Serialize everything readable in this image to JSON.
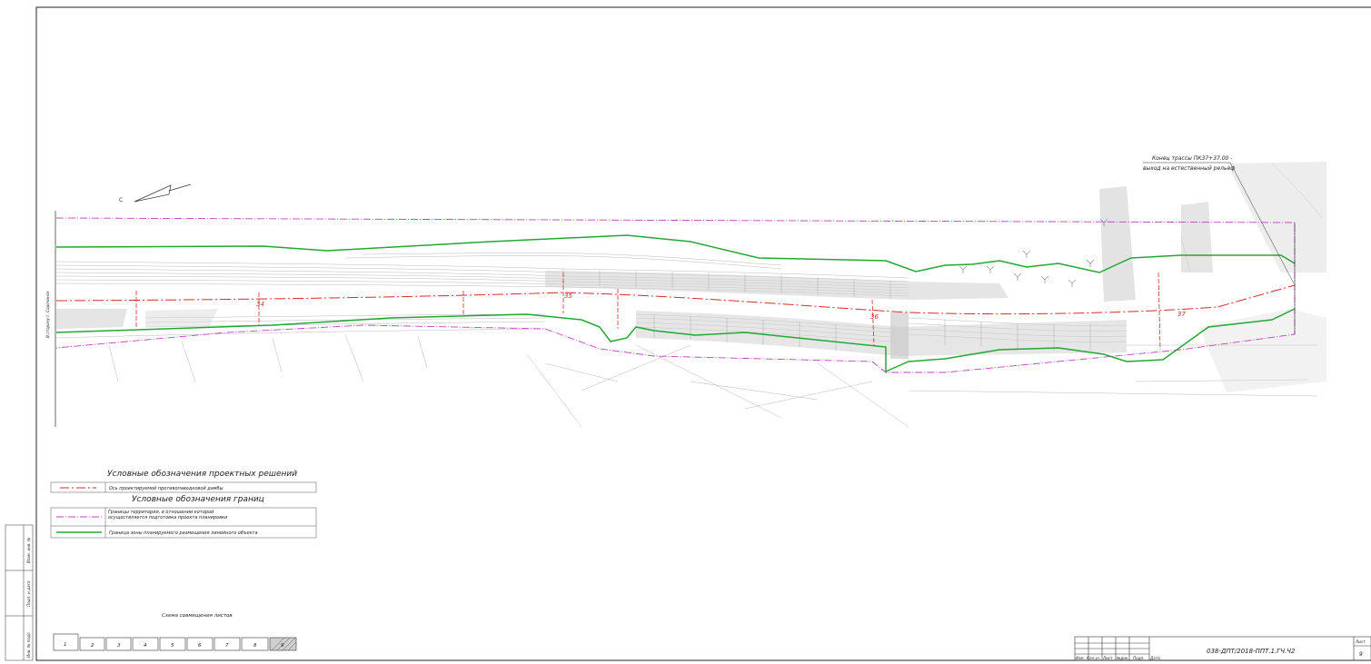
{
  "drawing": {
    "end_note": {
      "line1": "Конец трассы ПК37+37.00 -",
      "line2": "выход на естественный рельеф"
    },
    "side_note": "В сторону г. Сорочинск",
    "chainage_labels": [
      "34",
      "35",
      "36",
      "37"
    ],
    "colors": {
      "dam_axis": "#d62b2b",
      "territory_border": "#c040c0",
      "zone_border": "#22a832",
      "contour": "#9a9a9a"
    }
  },
  "legend": {
    "title_design": "Условные обозначения проектных решений",
    "design_items": [
      {
        "label": "Ось проектируемой противопаводковой дамбы"
      }
    ],
    "title_borders": "Условные обозначения границ",
    "border_items": [
      {
        "label": "Границы территории, в отношении которой осуществляется подготовка проекта планировки"
      },
      {
        "label": "Граница зоны планируемого размещения линейного объекта"
      }
    ]
  },
  "sheet_scheme": {
    "title": "Схема совмещения листов",
    "sheets": [
      "1",
      "2",
      "3",
      "4",
      "5",
      "6",
      "7",
      "8",
      "9"
    ],
    "current": "9"
  },
  "left_stamp": {
    "labels": [
      "Взам. инв. №",
      "Подп. и дата",
      "Инв. № подл."
    ]
  },
  "title_block": {
    "columns": [
      "Изм.",
      "Кол.уч.",
      "Лист",
      "№док.",
      "Подп.",
      "Дата"
    ],
    "code": "038-ДПТ/2018-ППТ.1.ГЧ.Ч2",
    "sheet_label": "Лист",
    "sheet_number": "9"
  }
}
